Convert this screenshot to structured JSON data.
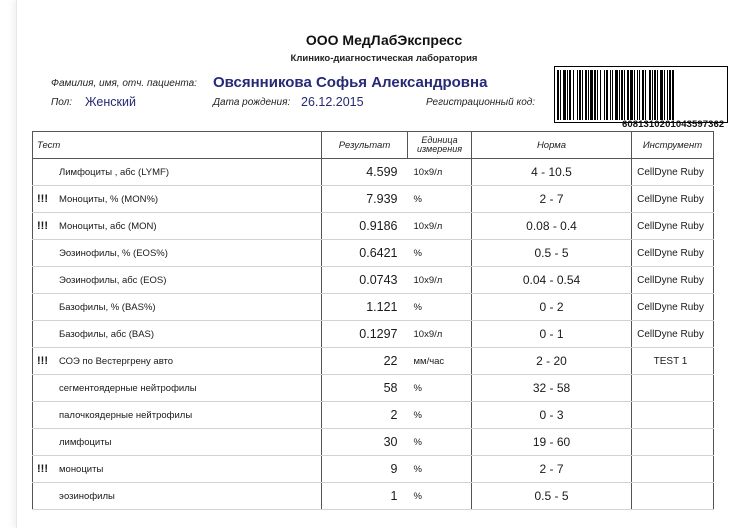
{
  "header": {
    "lab_name": "ООО МедЛабЭкспресс",
    "lab_subtitle": "Клинико-диагностическая лаборатория"
  },
  "patient": {
    "name_label": "Фамилия, имя, отч. пациента:",
    "name": "Овсянникова Софья Александровна",
    "sex_label": "Пол:",
    "sex": "Женский",
    "dob_label": "Дата рождения:",
    "dob": "26.12.2015",
    "reg_label": "Регистрационный код:"
  },
  "barcode": {
    "number": "6081310201043597362"
  },
  "table": {
    "headers": {
      "test": "Тест",
      "result": "Результат",
      "unit_line1": "Единица",
      "unit_line2": "измерения",
      "norm": "Норма",
      "instrument": "Инструмент"
    },
    "rows": [
      {
        "flag": "",
        "test": "Лимфоциты , абс (LYMF)",
        "result": "4.599",
        "unit": "10x9/л",
        "norm": "4 - 10.5",
        "instrument": "CellDyne Ruby"
      },
      {
        "flag": "!!!",
        "test": "Моноциты, % (MON%)",
        "result": "7.939",
        "unit": "%",
        "norm": "2 - 7",
        "instrument": "CellDyne Ruby"
      },
      {
        "flag": "!!!",
        "test": "Моноциты, абс (MON)",
        "result": "0.9186",
        "unit": "10x9/л",
        "norm": "0.08 - 0.4",
        "instrument": "CellDyne Ruby"
      },
      {
        "flag": "",
        "test": "Эозинофилы, % (EOS%)",
        "result": "0.6421",
        "unit": "%",
        "norm": "0.5 - 5",
        "instrument": "CellDyne Ruby"
      },
      {
        "flag": "",
        "test": "Эозинофилы, абс (EOS)",
        "result": "0.0743",
        "unit": "10x9/л",
        "norm": "0.04 - 0.54",
        "instrument": "CellDyne Ruby"
      },
      {
        "flag": "",
        "test": "Базофилы, % (BAS%)",
        "result": "1.121",
        "unit": "%",
        "norm": "0 - 2",
        "instrument": "CellDyne Ruby"
      },
      {
        "flag": "",
        "test": "Базофилы, абс (BAS)",
        "result": "0.1297",
        "unit": "10x9/л",
        "norm": "0 - 1",
        "instrument": "CellDyne Ruby"
      },
      {
        "flag": "!!!",
        "test": "СОЭ по Вестергрену авто",
        "result": "22",
        "unit": "мм/час",
        "norm": "2 - 20",
        "instrument": "TEST 1"
      },
      {
        "flag": "",
        "test": "сегментоядерные нейтрофилы",
        "result": "58",
        "unit": "%",
        "norm": "32 - 58",
        "instrument": ""
      },
      {
        "flag": "",
        "test": "палочкоядерные нейтрофилы",
        "result": "2",
        "unit": "%",
        "norm": "0 - 3",
        "instrument": ""
      },
      {
        "flag": "",
        "test": "лимфоциты",
        "result": "30",
        "unit": "%",
        "norm": "19 - 60",
        "instrument": ""
      },
      {
        "flag": "!!!",
        "test": "моноциты",
        "result": "9",
        "unit": "%",
        "norm": "2 - 7",
        "instrument": ""
      },
      {
        "flag": "",
        "test": "эозинофилы",
        "result": "1",
        "unit": "%",
        "norm": "0.5 - 5",
        "instrument": ""
      }
    ]
  }
}
